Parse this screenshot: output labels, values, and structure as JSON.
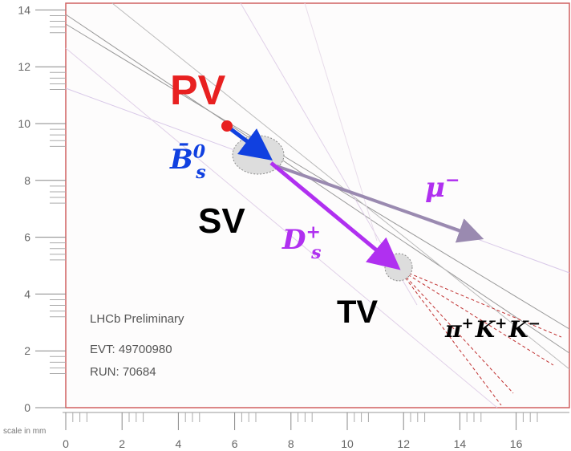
{
  "axes": {
    "yticks": [
      14,
      12,
      10,
      8,
      6,
      4,
      2,
      0
    ],
    "xticks": [
      0,
      2,
      4,
      6,
      8,
      10,
      12,
      14,
      16
    ],
    "scale_label": "scale in mm"
  },
  "vertices": {
    "pv": "PV",
    "sv": "SV",
    "tv": "TV"
  },
  "particles": {
    "bs0": {
      "symbol": "B̄",
      "subscript": "s",
      "superscript": "0"
    },
    "ds": {
      "symbol": "D",
      "subscript": "s",
      "superscript": "+"
    },
    "mu": {
      "symbol": "μ",
      "superscript": "−"
    },
    "hadrons": [
      {
        "symbol": "π",
        "superscript": "+"
      },
      {
        "symbol": "K",
        "superscript": "+"
      },
      {
        "symbol": "K",
        "superscript": "−"
      }
    ]
  },
  "info": {
    "label": "LHCb Preliminary",
    "event": "EVT: 49700980",
    "run": "RUN: 70684"
  }
}
